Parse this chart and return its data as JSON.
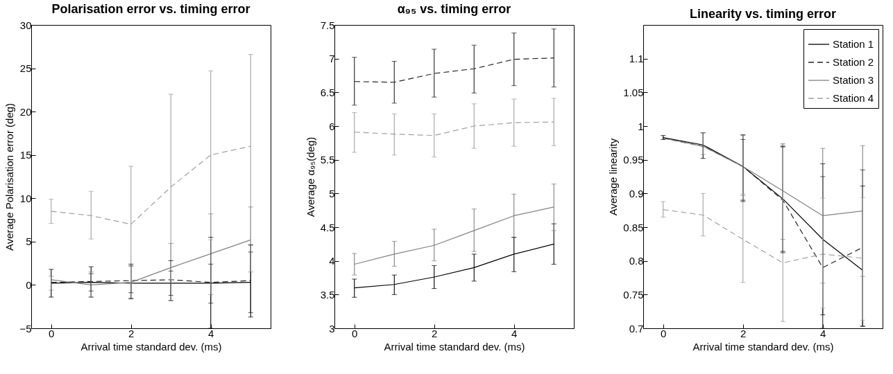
{
  "chart_data": [
    {
      "type": "line",
      "title": "Polarisation error vs. timing error",
      "xlabel": "Arrival time standard dev. (ms)",
      "ylabel": "Average Polarisation error (deg)",
      "x": [
        0,
        1,
        2,
        3,
        4,
        5
      ],
      "xlim": [
        -0.5,
        5.5
      ],
      "xticks": [
        0,
        2,
        4
      ],
      "ylim": [
        -5,
        30
      ],
      "yticks": [
        {
          "value": -5,
          "label": "−5"
        },
        0,
        5,
        10,
        15,
        20,
        25,
        30
      ],
      "grid": false,
      "legend": false,
      "marker": "none",
      "series": [
        {
          "color": "#000000",
          "line_style": "solid",
          "values": [
            0.2,
            0.3,
            0.2,
            0.2,
            0.2,
            0.3
          ],
          "errors": [
            [
              -1.4,
              1.8
            ],
            [
              -1.4,
              2.1
            ],
            [
              -1.6,
              2.4
            ],
            [
              -1.8,
              2.8
            ],
            [
              -5,
              5.5
            ],
            [
              -3.7,
              4.6
            ]
          ]
        },
        {
          "color": "#222222",
          "line_style": "dashed",
          "values": [
            0.3,
            0.4,
            0.5,
            0.6,
            0.3,
            0.5
          ],
          "errors": [
            null,
            [
              -0.7,
              1.3
            ],
            [
              -0.9,
              2.2
            ],
            [
              -1.2,
              1.6
            ],
            [
              -2.1,
              2.4
            ],
            [
              -3.2,
              3.8
            ]
          ]
        },
        {
          "color": "#808080",
          "line_style": "solid",
          "values": [
            0.6,
            0.0,
            0.3,
            2.0,
            3.6,
            5.2
          ],
          "errors": [
            [
              -0.6,
              1.0
            ],
            [
              -1.4,
              1.5
            ],
            [
              -1.5,
              2.2
            ],
            [
              -1.8,
              4.8
            ],
            [
              -1.1,
              8.2
            ],
            [
              1.5,
              9.0
            ]
          ]
        },
        {
          "color": "#a0a0a0",
          "line_style": "dashed",
          "values": [
            8.5,
            8.0,
            7.0,
            11.3,
            15.0,
            16.0
          ],
          "errors": [
            [
              7.1,
              9.9
            ],
            [
              5.3,
              10.8
            ],
            [
              0.2,
              13.7
            ],
            [
              0.6,
              22.0
            ],
            [
              5.2,
              24.7
            ],
            [
              4.7,
              26.6
            ]
          ]
        }
      ]
    },
    {
      "type": "line",
      "title": "α₉₅ vs. timing error",
      "xlabel": "Arrival time standard dev. (ms)",
      "ylabel": "Average α₉₅(deg)",
      "x": [
        0,
        1,
        2,
        3,
        4,
        5
      ],
      "xlim": [
        -0.5,
        5.5
      ],
      "xticks": [
        0,
        2,
        4
      ],
      "ylim": [
        3,
        7.5
      ],
      "yticks": [
        3,
        3.5,
        4,
        4.5,
        5,
        5.5,
        6,
        6.5,
        7,
        7.5
      ],
      "grid": false,
      "legend": false,
      "marker": "none",
      "series": [
        {
          "color": "#000000",
          "line_style": "solid",
          "values": [
            3.6,
            3.65,
            3.76,
            3.9,
            4.1,
            4.25
          ],
          "errors": [
            [
              3.46,
              3.73
            ],
            [
              3.5,
              3.79
            ],
            [
              3.59,
              3.93
            ],
            [
              3.7,
              4.1
            ],
            [
              3.84,
              4.35
            ],
            [
              3.95,
              4.55
            ]
          ]
        },
        {
          "color": "#222222",
          "line_style": "dashed",
          "values": [
            6.66,
            6.65,
            6.78,
            6.85,
            6.99,
            7.01
          ],
          "errors": [
            [
              6.31,
              7.02
            ],
            [
              6.34,
              6.96
            ],
            [
              6.43,
              7.14
            ],
            [
              6.49,
              7.2
            ],
            [
              6.6,
              7.38
            ],
            [
              6.58,
              7.44
            ]
          ]
        },
        {
          "color": "#808080",
          "line_style": "solid",
          "values": [
            3.95,
            4.1,
            4.23,
            4.45,
            4.67,
            4.8
          ],
          "errors": [
            [
              3.79,
              4.11
            ],
            [
              3.92,
              4.29
            ],
            [
              4.0,
              4.47
            ],
            [
              4.14,
              4.77
            ],
            [
              4.35,
              4.99
            ],
            [
              4.45,
              5.14
            ]
          ]
        },
        {
          "color": "#a0a0a0",
          "line_style": "dashed",
          "values": [
            5.91,
            5.88,
            5.86,
            6.0,
            6.05,
            6.06
          ],
          "errors": [
            [
              5.61,
              6.2
            ],
            [
              5.57,
              6.18
            ],
            [
              5.54,
              6.18
            ],
            [
              5.67,
              6.33
            ],
            [
              5.7,
              6.4
            ],
            [
              5.71,
              6.41
            ]
          ]
        }
      ]
    },
    {
      "type": "line",
      "title": "Linearity vs. timing error",
      "xlabel": "Arrival time standard dev. (ms)",
      "ylabel": "Average linearity",
      "x": [
        0,
        1,
        2,
        3,
        4,
        5
      ],
      "xlim": [
        -0.5,
        5.5
      ],
      "xticks": [
        0,
        2,
        4
      ],
      "ylim": [
        0.7,
        1.15
      ],
      "yticks": [
        0.7,
        0.75,
        0.8,
        0.85,
        0.9,
        0.95,
        1,
        1.05,
        1.1
      ],
      "grid": false,
      "legend": "top right",
      "marker": "none",
      "series": [
        {
          "name": "Station 1",
          "color": "#000000",
          "line_style": "solid",
          "values": [
            0.983,
            0.972,
            0.94,
            0.892,
            0.832,
            0.786
          ],
          "errors": [
            [
              0.98,
              0.986
            ],
            [
              0.952,
              0.99
            ],
            [
              0.89,
              0.987
            ],
            [
              0.814,
              0.97
            ],
            [
              0.72,
              0.944
            ],
            [
              0.703,
              0.911
            ]
          ]
        },
        {
          "name": "Station 2",
          "color": "#222222",
          "line_style": "dashed",
          "values": [
            0.982,
            0.97,
            0.94,
            0.89,
            0.79,
            0.82
          ],
          "errors": [
            null,
            null,
            [
              0.888,
              0.98
            ],
            [
              0.812,
              0.969
            ],
            [
              0.7,
              0.925
            ],
            [
              0.703,
              0.935
            ]
          ]
        },
        {
          "name": "Station 3",
          "color": "#808080",
          "line_style": "solid",
          "values": [
            0.982,
            0.97,
            0.94,
            0.904,
            0.867,
            0.874
          ],
          "errors": [
            null,
            [
              0.958,
              0.99
            ],
            [
              0.897,
              0.986
            ],
            [
              0.832,
              0.974
            ],
            [
              0.767,
              0.967
            ],
            [
              0.777,
              0.971
            ]
          ]
        },
        {
          "name": "Station 4",
          "color": "#a0a0a0",
          "line_style": "dashed",
          "values": [
            0.876,
            0.868,
            0.832,
            0.797,
            0.81,
            0.804
          ],
          "errors": [
            [
              0.865,
              0.888
            ],
            [
              0.837,
              0.9
            ],
            [
              0.768,
              0.899
            ],
            [
              0.71,
              0.972
            ],
            [
              0.73,
              0.893
            ],
            [
              0.712,
              0.894
            ]
          ]
        }
      ]
    }
  ]
}
